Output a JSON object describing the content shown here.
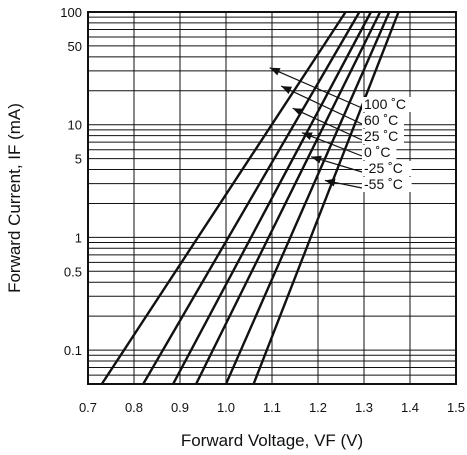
{
  "chart_data": {
    "type": "line",
    "title": "",
    "xlabel": "Forward Voltage, VF  (V)",
    "ylabel": "Forward Current, IF (mA)",
    "xscale": "linear",
    "yscale": "log",
    "xlim": [
      0.7,
      1.5
    ],
    "ylim": [
      0.05,
      100
    ],
    "grid": true,
    "x_ticks": [
      0.7,
      0.8,
      0.9,
      1.0,
      1.1,
      1.2,
      1.3,
      1.4,
      1.5
    ],
    "x_tick_labels": [
      "0.7",
      "0.8",
      "0.9",
      "1.0",
      "1.1",
      "1.2",
      "1.3",
      "1.4",
      "1.5"
    ],
    "y_ticks": [
      0.1,
      0.5,
      1,
      5,
      10,
      50,
      100
    ],
    "y_tick_labels": [
      "0.1",
      "0.5",
      "1",
      "5",
      "10",
      "50",
      "100"
    ],
    "legend_placement": "right, with arrows pointing to curves",
    "series": [
      {
        "name": "100 ˚C",
        "x": [
          0.73,
          1.26
        ],
        "y": [
          0.05,
          100
        ]
      },
      {
        "name": "60 ˚C",
        "x": [
          0.82,
          1.29
        ],
        "y": [
          0.05,
          100
        ]
      },
      {
        "name": "25 ˚C",
        "x": [
          0.885,
          1.315
        ],
        "y": [
          0.05,
          100
        ]
      },
      {
        "name": "0 ˚C",
        "x": [
          0.935,
          1.335
        ],
        "y": [
          0.05,
          100
        ]
      },
      {
        "name": "-25 ˚C",
        "x": [
          1.0,
          1.355
        ],
        "y": [
          0.05,
          100
        ]
      },
      {
        "name": "-55 ˚C",
        "x": [
          1.06,
          1.375
        ],
        "y": [
          0.05,
          100
        ]
      }
    ],
    "annotations": [
      {
        "label": "100 ˚C",
        "x": 1.095,
        "y": 32
      },
      {
        "label": "60 ˚C",
        "x": 1.12,
        "y": 22
      },
      {
        "label": "25 ˚C",
        "x": 1.145,
        "y": 14
      },
      {
        "label": "0 ˚C",
        "x": 1.165,
        "y": 8.5
      },
      {
        "label": "-25 ˚C",
        "x": 1.185,
        "y": 5.2
      },
      {
        "label": "-55 ˚C",
        "x": 1.215,
        "y": 3.2
      }
    ]
  }
}
